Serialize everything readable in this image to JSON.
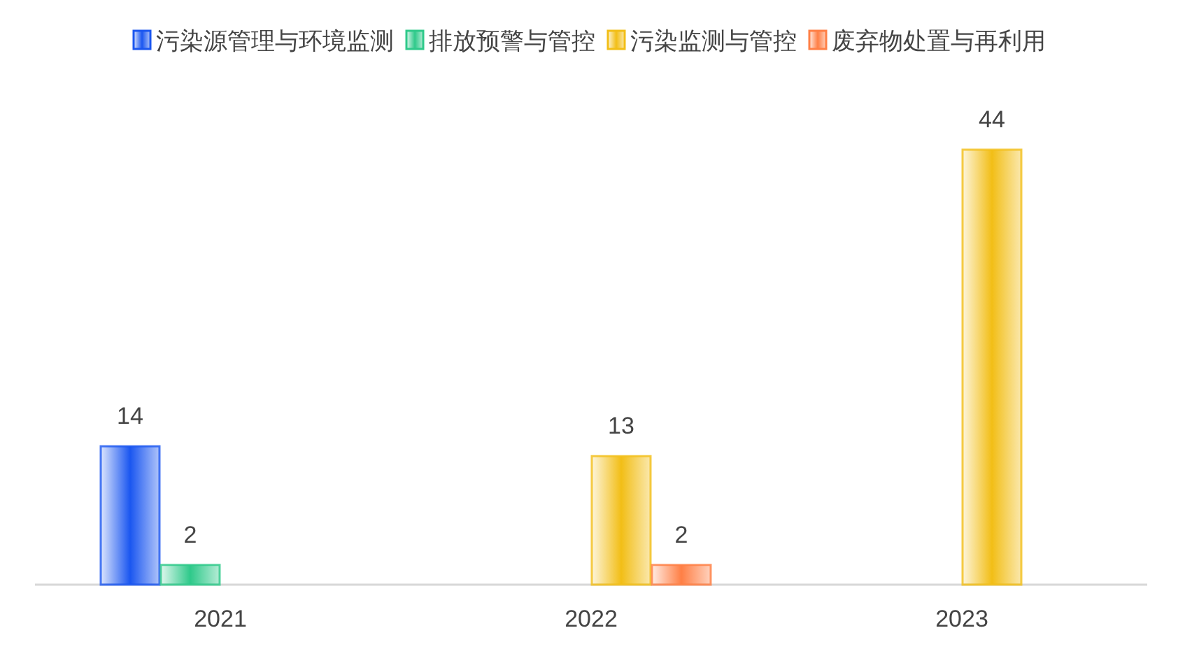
{
  "chart_data": {
    "type": "bar",
    "categories": [
      "2021",
      "2022",
      "2023"
    ],
    "data_labels": true,
    "legend": "top",
    "series": [
      {
        "name": "污染源管理与环境监测",
        "color": "#1a56f0",
        "values": [
          14,
          null,
          null
        ]
      },
      {
        "name": "排放预警与管控",
        "color": "#2ec98a",
        "values": [
          2,
          null,
          null
        ]
      },
      {
        "name": "污染监测与管控",
        "color": "#f2be16",
        "values": [
          null,
          13,
          44
        ]
      },
      {
        "name": "废弃物处置与再利用",
        "color": "#ff7f45",
        "values": [
          null,
          2,
          null
        ]
      }
    ]
  }
}
